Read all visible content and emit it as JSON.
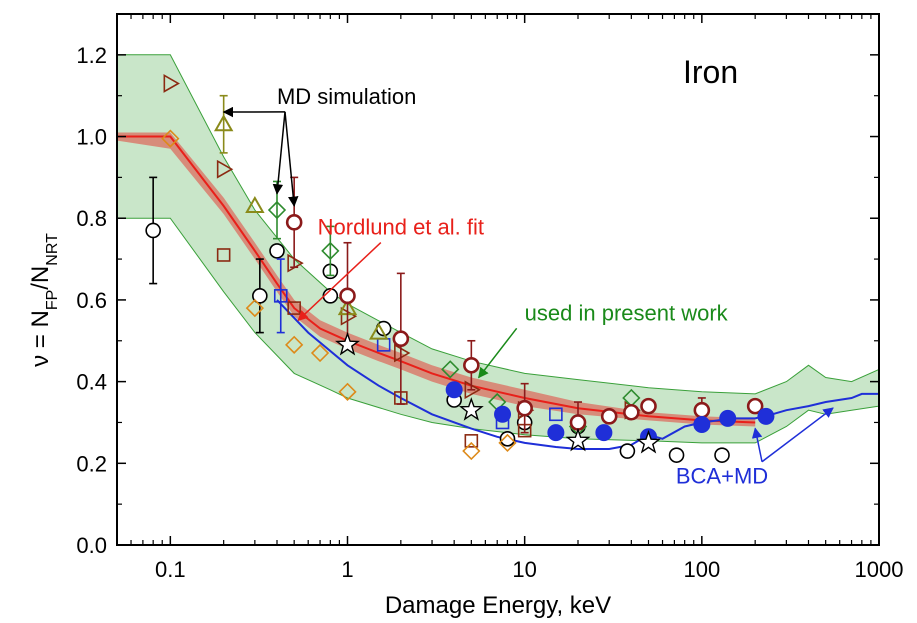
{
  "chart_data": {
    "type": "scatter",
    "title": "Iron",
    "xlabel": "Damage Energy,  keV",
    "ylabel": {
      "main": "ν = N",
      "sub1": "FP",
      "mid": "/N",
      "sub2": "NRT"
    },
    "xscale": "log",
    "xlim": [
      0.05,
      1000
    ],
    "ylim": [
      0,
      1.3
    ],
    "x_tick_labels": [
      "0.1",
      "1",
      "10",
      "100",
      "1000"
    ],
    "x_tick_values": [
      0.1,
      1,
      10,
      100,
      1000
    ],
    "y_tick_labels": [
      "0.0",
      "0.2",
      "0.4",
      "0.6",
      "0.8",
      "1.0",
      "1.2"
    ],
    "y_tick_values": [
      0,
      0.2,
      0.4,
      0.6,
      0.8,
      1.0,
      1.2
    ],
    "grid": false,
    "colors": {
      "band_fill": "#c9e6c9",
      "band_edge": "#3aa03a",
      "nordlund": "#e8201a",
      "bca": "#1f2fd8",
      "olive": "#8a8a1a",
      "green": "#2e8b2e",
      "brown": "#8b2a12",
      "orange": "#dd8a1a",
      "black": "#000000",
      "blue": "#1f2fd8",
      "darkred": "#8b1a1a"
    },
    "band": {
      "x": [
        0.05,
        0.1,
        0.2,
        0.3,
        0.5,
        0.8,
        1,
        2,
        3,
        5,
        10,
        20,
        50,
        100,
        200,
        300,
        400,
        500,
        700,
        1000
      ],
      "upper": [
        1.2,
        1.2,
        0.95,
        0.82,
        0.7,
        0.62,
        0.59,
        0.52,
        0.48,
        0.45,
        0.42,
        0.405,
        0.385,
        0.375,
        0.37,
        0.4,
        0.44,
        0.41,
        0.4,
        0.43
      ],
      "lower": [
        0.8,
        0.8,
        0.62,
        0.52,
        0.42,
        0.38,
        0.36,
        0.32,
        0.3,
        0.285,
        0.27,
        0.26,
        0.255,
        0.25,
        0.25,
        0.29,
        0.33,
        0.32,
        0.33,
        0.34
      ]
    },
    "nordlund_fit": {
      "x": [
        0.05,
        0.1,
        0.2,
        0.3,
        0.4,
        0.5,
        0.7,
        1,
        1.5,
        2,
        3,
        5,
        10,
        20,
        50,
        100,
        200
      ],
      "y": [
        1.0,
        1.0,
        0.83,
        0.72,
        0.64,
        0.58,
        0.53,
        0.5,
        0.47,
        0.45,
        0.42,
        0.39,
        0.36,
        0.335,
        0.315,
        0.305,
        0.3
      ],
      "upper": [
        1.01,
        1.01,
        0.85,
        0.74,
        0.66,
        0.6,
        0.55,
        0.52,
        0.49,
        0.47,
        0.44,
        0.41,
        0.38,
        0.35,
        0.325,
        0.315,
        0.31
      ],
      "lower": [
        0.99,
        0.97,
        0.81,
        0.7,
        0.62,
        0.56,
        0.51,
        0.48,
        0.45,
        0.43,
        0.4,
        0.37,
        0.34,
        0.32,
        0.305,
        0.295,
        0.29
      ]
    },
    "bca_md": {
      "x": [
        0.4,
        0.6,
        1,
        1.5,
        2,
        3,
        5,
        7,
        10,
        15,
        20,
        30,
        40,
        50,
        60,
        80,
        100,
        150,
        200,
        250,
        300,
        400,
        500,
        700,
        800,
        1000
      ],
      "y": [
        0.6,
        0.52,
        0.44,
        0.39,
        0.36,
        0.32,
        0.285,
        0.265,
        0.25,
        0.24,
        0.235,
        0.235,
        0.245,
        0.27,
        0.26,
        0.29,
        0.3,
        0.31,
        0.31,
        0.32,
        0.33,
        0.34,
        0.35,
        0.36,
        0.37,
        0.37
      ]
    },
    "series": [
      {
        "marker": "circle-open",
        "color": "#000000",
        "points": [
          {
            "x": 0.08,
            "y": 0.77,
            "err": 0.13
          },
          {
            "x": 0.32,
            "y": 0.61,
            "err": 0.09
          },
          {
            "x": 0.4,
            "y": 0.72,
            "err": 0.0
          },
          {
            "x": 0.8,
            "y": 0.67,
            "err": 0.0
          },
          {
            "x": 0.8,
            "y": 0.61,
            "err": 0.0
          },
          {
            "x": 1.6,
            "y": 0.53,
            "err": 0.0
          },
          {
            "x": 4.0,
            "y": 0.355,
            "err": 0.0
          },
          {
            "x": 8.0,
            "y": 0.26,
            "err": 0.0
          },
          {
            "x": 10.0,
            "y": 0.3,
            "err": 0.0
          },
          {
            "x": 20.0,
            "y": 0.29,
            "err": 0.0
          },
          {
            "x": 38.0,
            "y": 0.23,
            "err": 0.0
          },
          {
            "x": 72.0,
            "y": 0.22,
            "err": 0.0
          },
          {
            "x": 130.0,
            "y": 0.22,
            "err": 0.0
          }
        ]
      },
      {
        "marker": "triangle-right-open",
        "color": "#8b2a12",
        "points": [
          {
            "x": 0.1,
            "y": 1.13,
            "err": 0.0
          },
          {
            "x": 0.2,
            "y": 0.92,
            "err": 0.0
          },
          {
            "x": 0.5,
            "y": 0.69,
            "err": 0.0
          },
          {
            "x": 1.0,
            "y": 0.56,
            "err": 0.0
          },
          {
            "x": 2.0,
            "y": 0.47,
            "err": 0.0
          },
          {
            "x": 5.0,
            "y": 0.38,
            "err": 0.0
          },
          {
            "x": 10.0,
            "y": 0.33,
            "err": 0.0
          },
          {
            "x": 40.0,
            "y": 0.33,
            "err": 0.0
          }
        ]
      },
      {
        "marker": "square-open",
        "color": "#8b2a12",
        "points": [
          {
            "x": 0.2,
            "y": 0.71,
            "err": 0.0
          },
          {
            "x": 0.5,
            "y": 0.58,
            "err": 0.0
          },
          {
            "x": 2.0,
            "y": 0.36,
            "err": 0.0
          },
          {
            "x": 5.0,
            "y": 0.255,
            "err": 0.0
          },
          {
            "x": 10.0,
            "y": 0.28,
            "err": 0.0
          }
        ]
      },
      {
        "marker": "square-open",
        "color": "#1f2fd8",
        "points": [
          {
            "x": 0.42,
            "y": 0.61,
            "err": 0.09
          },
          {
            "x": 1.6,
            "y": 0.49,
            "err": 0.0
          },
          {
            "x": 7.5,
            "y": 0.3,
            "err": 0.0
          },
          {
            "x": 15.0,
            "y": 0.32,
            "err": 0.0
          }
        ]
      },
      {
        "marker": "diamond-open",
        "color": "#dd8a1a",
        "points": [
          {
            "x": 0.1,
            "y": 0.995,
            "err": 0.0
          },
          {
            "x": 0.3,
            "y": 0.58,
            "err": 0.0
          },
          {
            "x": 0.5,
            "y": 0.49,
            "err": 0.0
          },
          {
            "x": 0.7,
            "y": 0.47,
            "err": 0.0
          },
          {
            "x": 1.0,
            "y": 0.375,
            "err": 0.0
          },
          {
            "x": 5.0,
            "y": 0.23,
            "err": 0.0
          },
          {
            "x": 8.0,
            "y": 0.25,
            "err": 0.0
          }
        ]
      },
      {
        "marker": "diamond-open",
        "color": "#2e8b2e",
        "points": [
          {
            "x": 0.4,
            "y": 0.82,
            "err": 0.07
          },
          {
            "x": 0.8,
            "y": 0.72,
            "err": 0.06
          },
          {
            "x": 3.8,
            "y": 0.43,
            "err": 0.0
          },
          {
            "x": 7.0,
            "y": 0.35,
            "err": 0.0
          },
          {
            "x": 20.0,
            "y": 0.29,
            "err": 0.0
          },
          {
            "x": 40.0,
            "y": 0.36,
            "err": 0.0
          }
        ]
      },
      {
        "marker": "triangle-up-open",
        "color": "#8a8a1a",
        "points": [
          {
            "x": 0.2,
            "y": 1.03,
            "err": 0.07
          },
          {
            "x": 0.3,
            "y": 0.83,
            "err": 0.0
          },
          {
            "x": 1.0,
            "y": 0.58,
            "err": 0.0
          },
          {
            "x": 1.5,
            "y": 0.52,
            "err": 0.0
          }
        ]
      },
      {
        "marker": "circle-open-thick",
        "color": "#8b1a1a",
        "points": [
          {
            "x": 0.5,
            "y": 0.79,
            "err": 0.11
          },
          {
            "x": 1.0,
            "y": 0.61,
            "err": 0.13
          },
          {
            "x": 2.0,
            "y": 0.505,
            "err": 0.16
          },
          {
            "x": 5.0,
            "y": 0.44,
            "err": 0.06
          },
          {
            "x": 10.0,
            "y": 0.335,
            "err": 0.06
          },
          {
            "x": 20.0,
            "y": 0.3,
            "err": 0.05
          },
          {
            "x": 30.0,
            "y": 0.315,
            "err": 0.0
          },
          {
            "x": 40.0,
            "y": 0.325,
            "err": 0.0
          },
          {
            "x": 50.0,
            "y": 0.34,
            "err": 0.0
          },
          {
            "x": 100.0,
            "y": 0.33,
            "err": 0.03
          },
          {
            "x": 200.0,
            "y": 0.34,
            "err": 0.0
          }
        ]
      },
      {
        "marker": "circle-filled",
        "color": "#1f2fd8",
        "points": [
          {
            "x": 4.0,
            "y": 0.38,
            "err": 0.0
          },
          {
            "x": 7.5,
            "y": 0.32,
            "err": 0.0
          },
          {
            "x": 15.0,
            "y": 0.275,
            "err": 0.0
          },
          {
            "x": 28.0,
            "y": 0.275,
            "err": 0.0
          },
          {
            "x": 50.0,
            "y": 0.265,
            "err": 0.0
          },
          {
            "x": 100.0,
            "y": 0.295,
            "err": 0.0
          },
          {
            "x": 140.0,
            "y": 0.31,
            "err": 0.0
          },
          {
            "x": 230.0,
            "y": 0.315,
            "err": 0.0
          }
        ]
      },
      {
        "marker": "star-open",
        "color": "#000000",
        "points": [
          {
            "x": 1.0,
            "y": 0.49,
            "err": 0.0
          },
          {
            "x": 5.0,
            "y": 0.33,
            "err": 0.0
          },
          {
            "x": 20.0,
            "y": 0.255,
            "err": 0.0
          },
          {
            "x": 50.0,
            "y": 0.25,
            "err": 0.0
          }
        ]
      }
    ],
    "annotations": {
      "md_simulation": {
        "text": "MD simulation",
        "color": "#000000",
        "x": 0.4,
        "y": 1.08,
        "arrow_targets": [
          {
            "x": 0.2,
            "y": 1.06
          },
          {
            "x": 0.4,
            "y": 0.86
          },
          {
            "x": 0.5,
            "y": 0.83
          }
        ]
      },
      "nordlund": {
        "text": "Nordlund et al. fit",
        "color": "#e8201a",
        "x": 2.0,
        "y": 0.76,
        "arrow_targets": [
          {
            "x": 0.5,
            "y": 0.55
          }
        ]
      },
      "present_work": {
        "text": "used in present work",
        "color": "#1a8a1a",
        "x": 10.0,
        "y": 0.55,
        "arrow_targets": [
          {
            "x": 5.5,
            "y": 0.41
          }
        ]
      },
      "bca_md": {
        "text": "BCA+MD",
        "color": "#1f2fd8",
        "x": 130.0,
        "y": 0.15,
        "arrow_targets": [
          {
            "x": 200.0,
            "y": 0.3
          },
          {
            "x": 550.0,
            "y": 0.35
          }
        ]
      }
    }
  }
}
